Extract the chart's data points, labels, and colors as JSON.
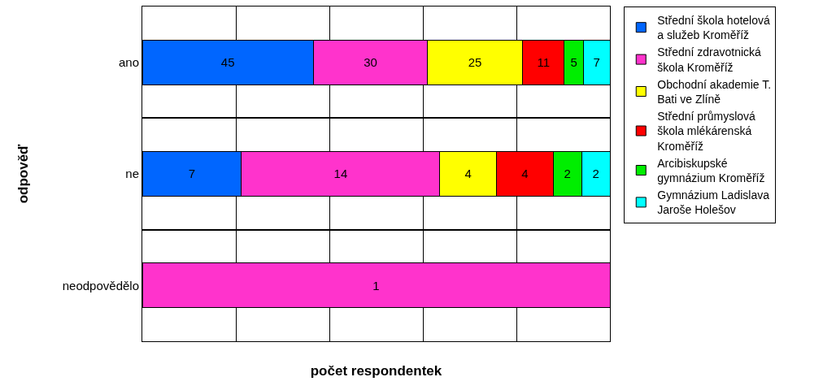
{
  "chart_data": [
    {
      "type": "bar",
      "orientation": "horizontal",
      "stacked": true,
      "categories": [
        "ano"
      ],
      "xlim": [
        0,
        123
      ],
      "series": [
        {
          "name": "Střední škola hotelová a služeb Kroměříž",
          "color": "#0066ff",
          "values": [
            45
          ]
        },
        {
          "name": "Střední zdravotnická škola Kroměříž",
          "color": "#ff33cc",
          "values": [
            30
          ]
        },
        {
          "name": "Obchodní akademie T. Bati ve Zlíně",
          "color": "#ffff00",
          "values": [
            25
          ]
        },
        {
          "name": "Střední průmyslová škola mlékárenská Kroměříž",
          "color": "#ff0000",
          "values": [
            11
          ]
        },
        {
          "name": "Arcibiskupské gymnázium Kroměříž",
          "color": "#00ee00",
          "values": [
            5
          ]
        },
        {
          "name": "Gymnázium Ladislava Jaroše Holešov",
          "color": "#00ffff",
          "values": [
            7
          ]
        }
      ],
      "data_labels": true,
      "tick_labels": "y",
      "grid": true,
      "legend": "right"
    },
    {
      "type": "bar",
      "orientation": "horizontal",
      "stacked": true,
      "categories": [
        "ne"
      ],
      "xlim": [
        0,
        33
      ],
      "ylabel": "odpověď",
      "series": [
        {
          "name": "Střední škola hotelová a služeb Kroměříž",
          "color": "#0066ff",
          "values": [
            7
          ]
        },
        {
          "name": "Střední zdravotnická škola Kroměříž",
          "color": "#ff33cc",
          "values": [
            14
          ]
        },
        {
          "name": "Obchodní akademie T. Bati ve Zlíně",
          "color": "#ffff00",
          "values": [
            4
          ]
        },
        {
          "name": "Střední průmyslová škola mlékárenská Kroměříž",
          "color": "#ff0000",
          "values": [
            4
          ]
        },
        {
          "name": "Arcibiskupské gymnázium Kroměříž",
          "color": "#00ee00",
          "values": [
            2
          ]
        },
        {
          "name": "Gymnázium Ladislava Jaroše Holešov",
          "color": "#00ffff",
          "values": [
            2
          ]
        }
      ],
      "data_labels": true,
      "tick_labels": "y",
      "grid": true,
      "legend": "right"
    },
    {
      "type": "bar",
      "orientation": "horizontal",
      "stacked": true,
      "categories": [
        "neodpovědělo"
      ],
      "xlabel": "počet respondentek",
      "series": [
        {
          "name": "Střední zdravotnická škola Kroměříž",
          "color": "#ff33cc",
          "values": [
            1
          ]
        }
      ],
      "data_labels": true,
      "tick_labels": "y",
      "grid": true,
      "legend": "right"
    }
  ]
}
